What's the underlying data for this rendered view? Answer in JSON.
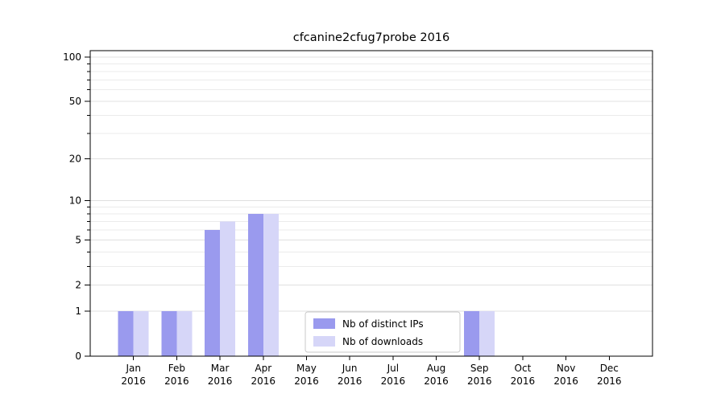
{
  "chart_data": {
    "type": "bar",
    "title": "cfcanine2cfug7probe 2016",
    "categories": [
      "Jan 2016",
      "Feb 2016",
      "Mar 2016",
      "Apr 2016",
      "May 2016",
      "Jun 2016",
      "Jul 2016",
      "Aug 2016",
      "Sep 2016",
      "Oct 2016",
      "Nov 2016",
      "Dec 2016"
    ],
    "x": {
      "months": [
        "Jan",
        "Feb",
        "Mar",
        "Apr",
        "May",
        "Jun",
        "Jul",
        "Aug",
        "Sep",
        "Oct",
        "Nov",
        "Dec"
      ],
      "year": "2016"
    },
    "series": [
      {
        "name": "Nb of distinct IPs",
        "color": "#9a9aee",
        "values": [
          1,
          1,
          6,
          8,
          0,
          0,
          0,
          0,
          1,
          0,
          0,
          0
        ]
      },
      {
        "name": "Nb of downloads",
        "color": "#d6d6f8",
        "values": [
          1,
          1,
          7,
          8,
          0,
          0,
          0,
          0,
          1,
          0,
          0,
          0
        ]
      }
    ],
    "y_axis": {
      "scale": "log1p",
      "tick_values": [
        0,
        1,
        2,
        5,
        10,
        20,
        50,
        100
      ],
      "tick_labels": [
        "0",
        "1",
        "2",
        "5",
        "10",
        "20",
        "50",
        "100"
      ],
      "minor_gridlines": [
        3,
        4,
        6,
        7,
        8,
        9,
        30,
        40,
        60,
        70,
        80,
        90
      ],
      "ylim": [
        0,
        110
      ]
    },
    "legend": {
      "position": "bottom-center",
      "entries": [
        "Nb of distinct IPs",
        "Nb of downloads"
      ]
    },
    "grid": "horizontal"
  },
  "colors": {
    "background": "#ffffff",
    "grid_major": "#e0e0e0",
    "grid_minor": "#ebebeb",
    "axis": "#000000",
    "legend_border": "#c9c9c9",
    "text": "#000000"
  }
}
